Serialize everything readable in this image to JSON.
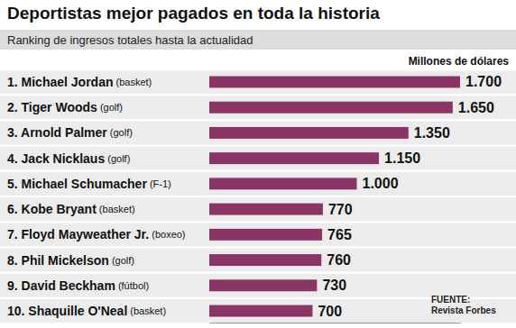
{
  "chart_data": {
    "type": "bar",
    "orientation": "horizontal",
    "title": "Deportistas mejor pagados en toda la historia",
    "subtitle": "Ranking de ingresos totales hasta la actualidad",
    "x_label": "Millones de dólares",
    "annotations": [
      "FUENTE:",
      "Revista Forbes"
    ],
    "categories": [
      "1. Michael Jordan (basket)",
      "2. Tiger Woods (golf)",
      "3. Arnold Palmer (golf)",
      "4. Jack Nicklaus (golf)",
      "5. Michael Schumacher (F-1)",
      "6. Kobe Bryant (basket)",
      "7. Floyd Mayweather Jr. (boxeo)",
      "8. Phil Mickelson (golf)",
      "9. David Beckham (fútbol)",
      "10. Shaquille O'Neal (basket)"
    ],
    "values": [
      1700,
      1650,
      1350,
      1150,
      1000,
      770,
      765,
      760,
      730,
      700
    ],
    "value_labels": [
      "1.700",
      "1.650",
      "1.350",
      "1.150",
      "1.000",
      "770",
      "765",
      "760",
      "730",
      "700"
    ],
    "color": "#8a3566",
    "xlim": [
      0,
      1700
    ],
    "data_labels": true,
    "tick_labels": false,
    "grid": false
  }
}
